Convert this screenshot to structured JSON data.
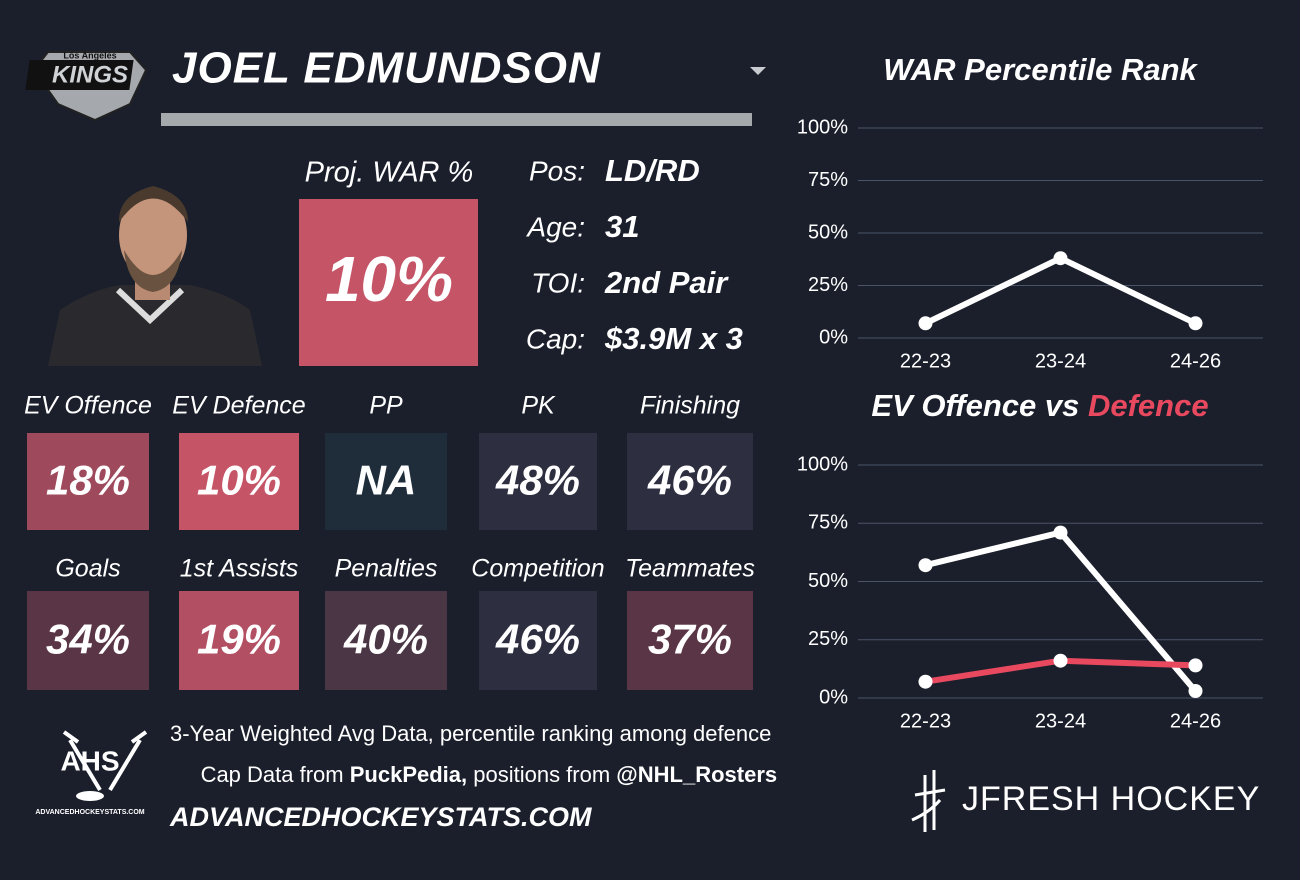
{
  "header": {
    "logo_top": "Los Angeles",
    "logo_text": "KINGS",
    "player": "JOEL EDMUNDSON"
  },
  "proj_war": {
    "label": "Proj. WAR %",
    "value": "10%"
  },
  "bio": [
    {
      "label": "Pos:",
      "value": "LD/RD"
    },
    {
      "label": "Age:",
      "value": "31"
    },
    {
      "label": "TOI:",
      "value": "2nd Pair"
    },
    {
      "label": "Cap:",
      "value": "$3.9M x 3"
    }
  ],
  "tiles": [
    {
      "label": "EV Offence",
      "value": "18%",
      "color": "#9e4a5c"
    },
    {
      "label": "EV Defence",
      "value": "10%",
      "color": "#c55467"
    },
    {
      "label": "PP",
      "value": "NA",
      "color": "#1f2d3b"
    },
    {
      "label": "PK",
      "value": "48%",
      "color": "#2d2f40"
    },
    {
      "label": "Finishing",
      "value": "46%",
      "color": "#2d2f40"
    },
    {
      "label": "Goals",
      "value": "34%",
      "color": "#5a3545"
    },
    {
      "label": "1st Assists",
      "value": "19%",
      "color": "#b24f62"
    },
    {
      "label": "Penalties",
      "value": "40%",
      "color": "#4b3645"
    },
    {
      "label": "Competition",
      "value": "46%",
      "color": "#2d2f40"
    },
    {
      "label": "Teammates",
      "value": "37%",
      "color": "#5a3545"
    }
  ],
  "footer": {
    "logo_text": "AHS",
    "logo_sub": "ADVANCEDHOCKEYSTATS.COM",
    "line1": "3-Year Weighted Avg Data, percentile ranking among defence",
    "line2": [
      "Cap Data from ",
      "PuckPedia,",
      " positions from ",
      "@NHL_Rosters"
    ],
    "site": "ADVANCEDHOCKEYSTATS.COM",
    "brand": "JFRESH HOCKEY"
  },
  "chart_data": [
    {
      "type": "line",
      "title": "WAR Percentile Rank",
      "categories": [
        "22-23",
        "23-24",
        "24-26"
      ],
      "series": [
        {
          "color": "#ffffff",
          "values": [
            7,
            38,
            7
          ]
        }
      ],
      "ylim": [
        0,
        100
      ],
      "yticks": [
        {
          "value": 0,
          "label": "0%"
        },
        {
          "value": 25,
          "label": "25%"
        },
        {
          "value": 50,
          "label": "50%"
        },
        {
          "value": 75,
          "label": "75%"
        },
        {
          "value": 100,
          "label": "100%"
        }
      ],
      "grid": true
    },
    {
      "type": "line",
      "title_parts": [
        "EV Offence vs ",
        "Defence"
      ],
      "categories": [
        "22-23",
        "23-24",
        "24-26"
      ],
      "series": [
        {
          "color": "#ffffff",
          "values": [
            57,
            71,
            3
          ]
        },
        {
          "color": "#e8495f",
          "values": [
            7,
            16,
            14
          ]
        }
      ],
      "ylim": [
        0,
        100
      ],
      "yticks": [
        {
          "value": 0,
          "label": "0%"
        },
        {
          "value": 25,
          "label": "25%"
        },
        {
          "value": 50,
          "label": "50%"
        },
        {
          "value": 75,
          "label": "75%"
        },
        {
          "value": 100,
          "label": "100%"
        }
      ],
      "grid": true
    }
  ]
}
